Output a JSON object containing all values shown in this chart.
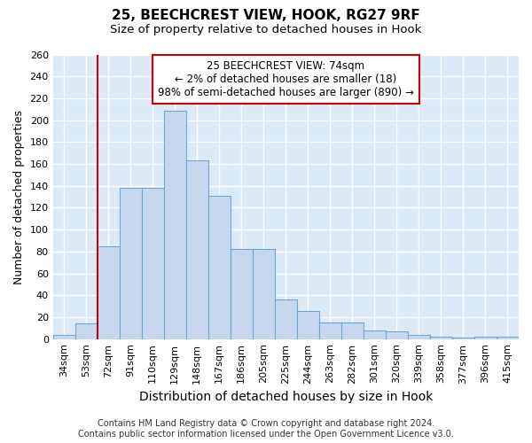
{
  "title1": "25, BEECHCREST VIEW, HOOK, RG27 9RF",
  "title2": "Size of property relative to detached houses in Hook",
  "xlabel": "Distribution of detached houses by size in Hook",
  "ylabel": "Number of detached properties",
  "categories": [
    "34sqm",
    "53sqm",
    "72sqm",
    "91sqm",
    "110sqm",
    "129sqm",
    "148sqm",
    "167sqm",
    "186sqm",
    "205sqm",
    "225sqm",
    "244sqm",
    "263sqm",
    "282sqm",
    "301sqm",
    "320sqm",
    "339sqm",
    "358sqm",
    "377sqm",
    "396sqm",
    "415sqm"
  ],
  "values": [
    4,
    14,
    85,
    138,
    138,
    209,
    163,
    131,
    82,
    82,
    36,
    26,
    15,
    15,
    8,
    7,
    4,
    2,
    1,
    2,
    2
  ],
  "bar_color": "#c5d8f0",
  "bar_edge_color": "#6aaad4",
  "vline_color": "#cc0000",
  "vline_position": 2.0,
  "annotation_text": "25 BEECHCREST VIEW: 74sqm\n← 2% of detached houses are smaller (18)\n98% of semi-detached houses are larger (890) →",
  "annotation_box_color": "#ffffff",
  "annotation_box_edge": "#cc0000",
  "footer1": "Contains HM Land Registry data © Crown copyright and database right 2024.",
  "footer2": "Contains public sector information licensed under the Open Government Licence v3.0.",
  "ylim": [
    0,
    260
  ],
  "yticks": [
    0,
    20,
    40,
    60,
    80,
    100,
    120,
    140,
    160,
    180,
    200,
    220,
    240,
    260
  ],
  "fig_bg": "#ffffff",
  "plot_bg": "#dce9f7",
  "grid_color": "#ffffff",
  "title1_fontsize": 11,
  "title2_fontsize": 9.5,
  "tick_fontsize": 8,
  "ylabel_fontsize": 9,
  "xlabel_fontsize": 10,
  "footer_fontsize": 7
}
